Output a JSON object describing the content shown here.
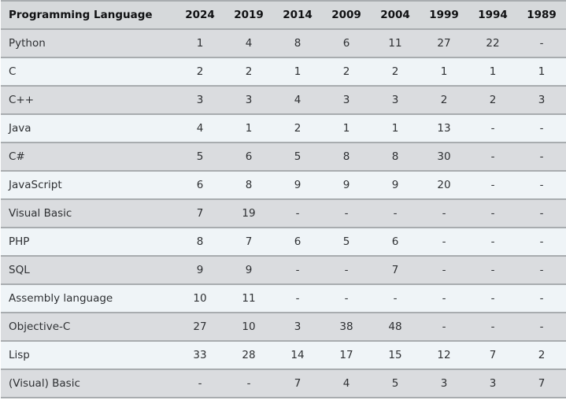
{
  "colors": {
    "header_bg": "#d6d9db",
    "row_gray_bg": "#dadcdf",
    "row_light_bg": "#eff4f7",
    "border": "#a8acaf",
    "text": "#2e3033"
  },
  "chart_data": {
    "type": "table",
    "columns": [
      "Programming Language",
      "2024",
      "2019",
      "2014",
      "2009",
      "2004",
      "1999",
      "1994",
      "1989"
    ],
    "rows": [
      {
        "language": "Python",
        "ranks": [
          "1",
          "4",
          "8",
          "6",
          "11",
          "27",
          "22",
          "-"
        ]
      },
      {
        "language": "C",
        "ranks": [
          "2",
          "2",
          "1",
          "2",
          "2",
          "1",
          "1",
          "1"
        ]
      },
      {
        "language": "C++",
        "ranks": [
          "3",
          "3",
          "4",
          "3",
          "3",
          "2",
          "2",
          "3"
        ]
      },
      {
        "language": "Java",
        "ranks": [
          "4",
          "1",
          "2",
          "1",
          "1",
          "13",
          "-",
          "-"
        ]
      },
      {
        "language": "C#",
        "ranks": [
          "5",
          "6",
          "5",
          "8",
          "8",
          "30",
          "-",
          "-"
        ]
      },
      {
        "language": "JavaScript",
        "ranks": [
          "6",
          "8",
          "9",
          "9",
          "9",
          "20",
          "-",
          "-"
        ]
      },
      {
        "language": "Visual Basic",
        "ranks": [
          "7",
          "19",
          "-",
          "-",
          "-",
          "-",
          "-",
          "-"
        ]
      },
      {
        "language": "PHP",
        "ranks": [
          "8",
          "7",
          "6",
          "5",
          "6",
          "-",
          "-",
          "-"
        ]
      },
      {
        "language": "SQL",
        "ranks": [
          "9",
          "9",
          "-",
          "-",
          "7",
          "-",
          "-",
          "-"
        ]
      },
      {
        "language": "Assembly language",
        "ranks": [
          "10",
          "11",
          "-",
          "-",
          "-",
          "-",
          "-",
          "-"
        ]
      },
      {
        "language": "Objective-C",
        "ranks": [
          "27",
          "10",
          "3",
          "38",
          "48",
          "-",
          "-",
          "-"
        ]
      },
      {
        "language": "Lisp",
        "ranks": [
          "33",
          "28",
          "14",
          "17",
          "15",
          "12",
          "7",
          "2"
        ]
      },
      {
        "language": "(Visual) Basic",
        "ranks": [
          "-",
          "-",
          "7",
          "4",
          "5",
          "3",
          "3",
          "7"
        ]
      }
    ]
  }
}
